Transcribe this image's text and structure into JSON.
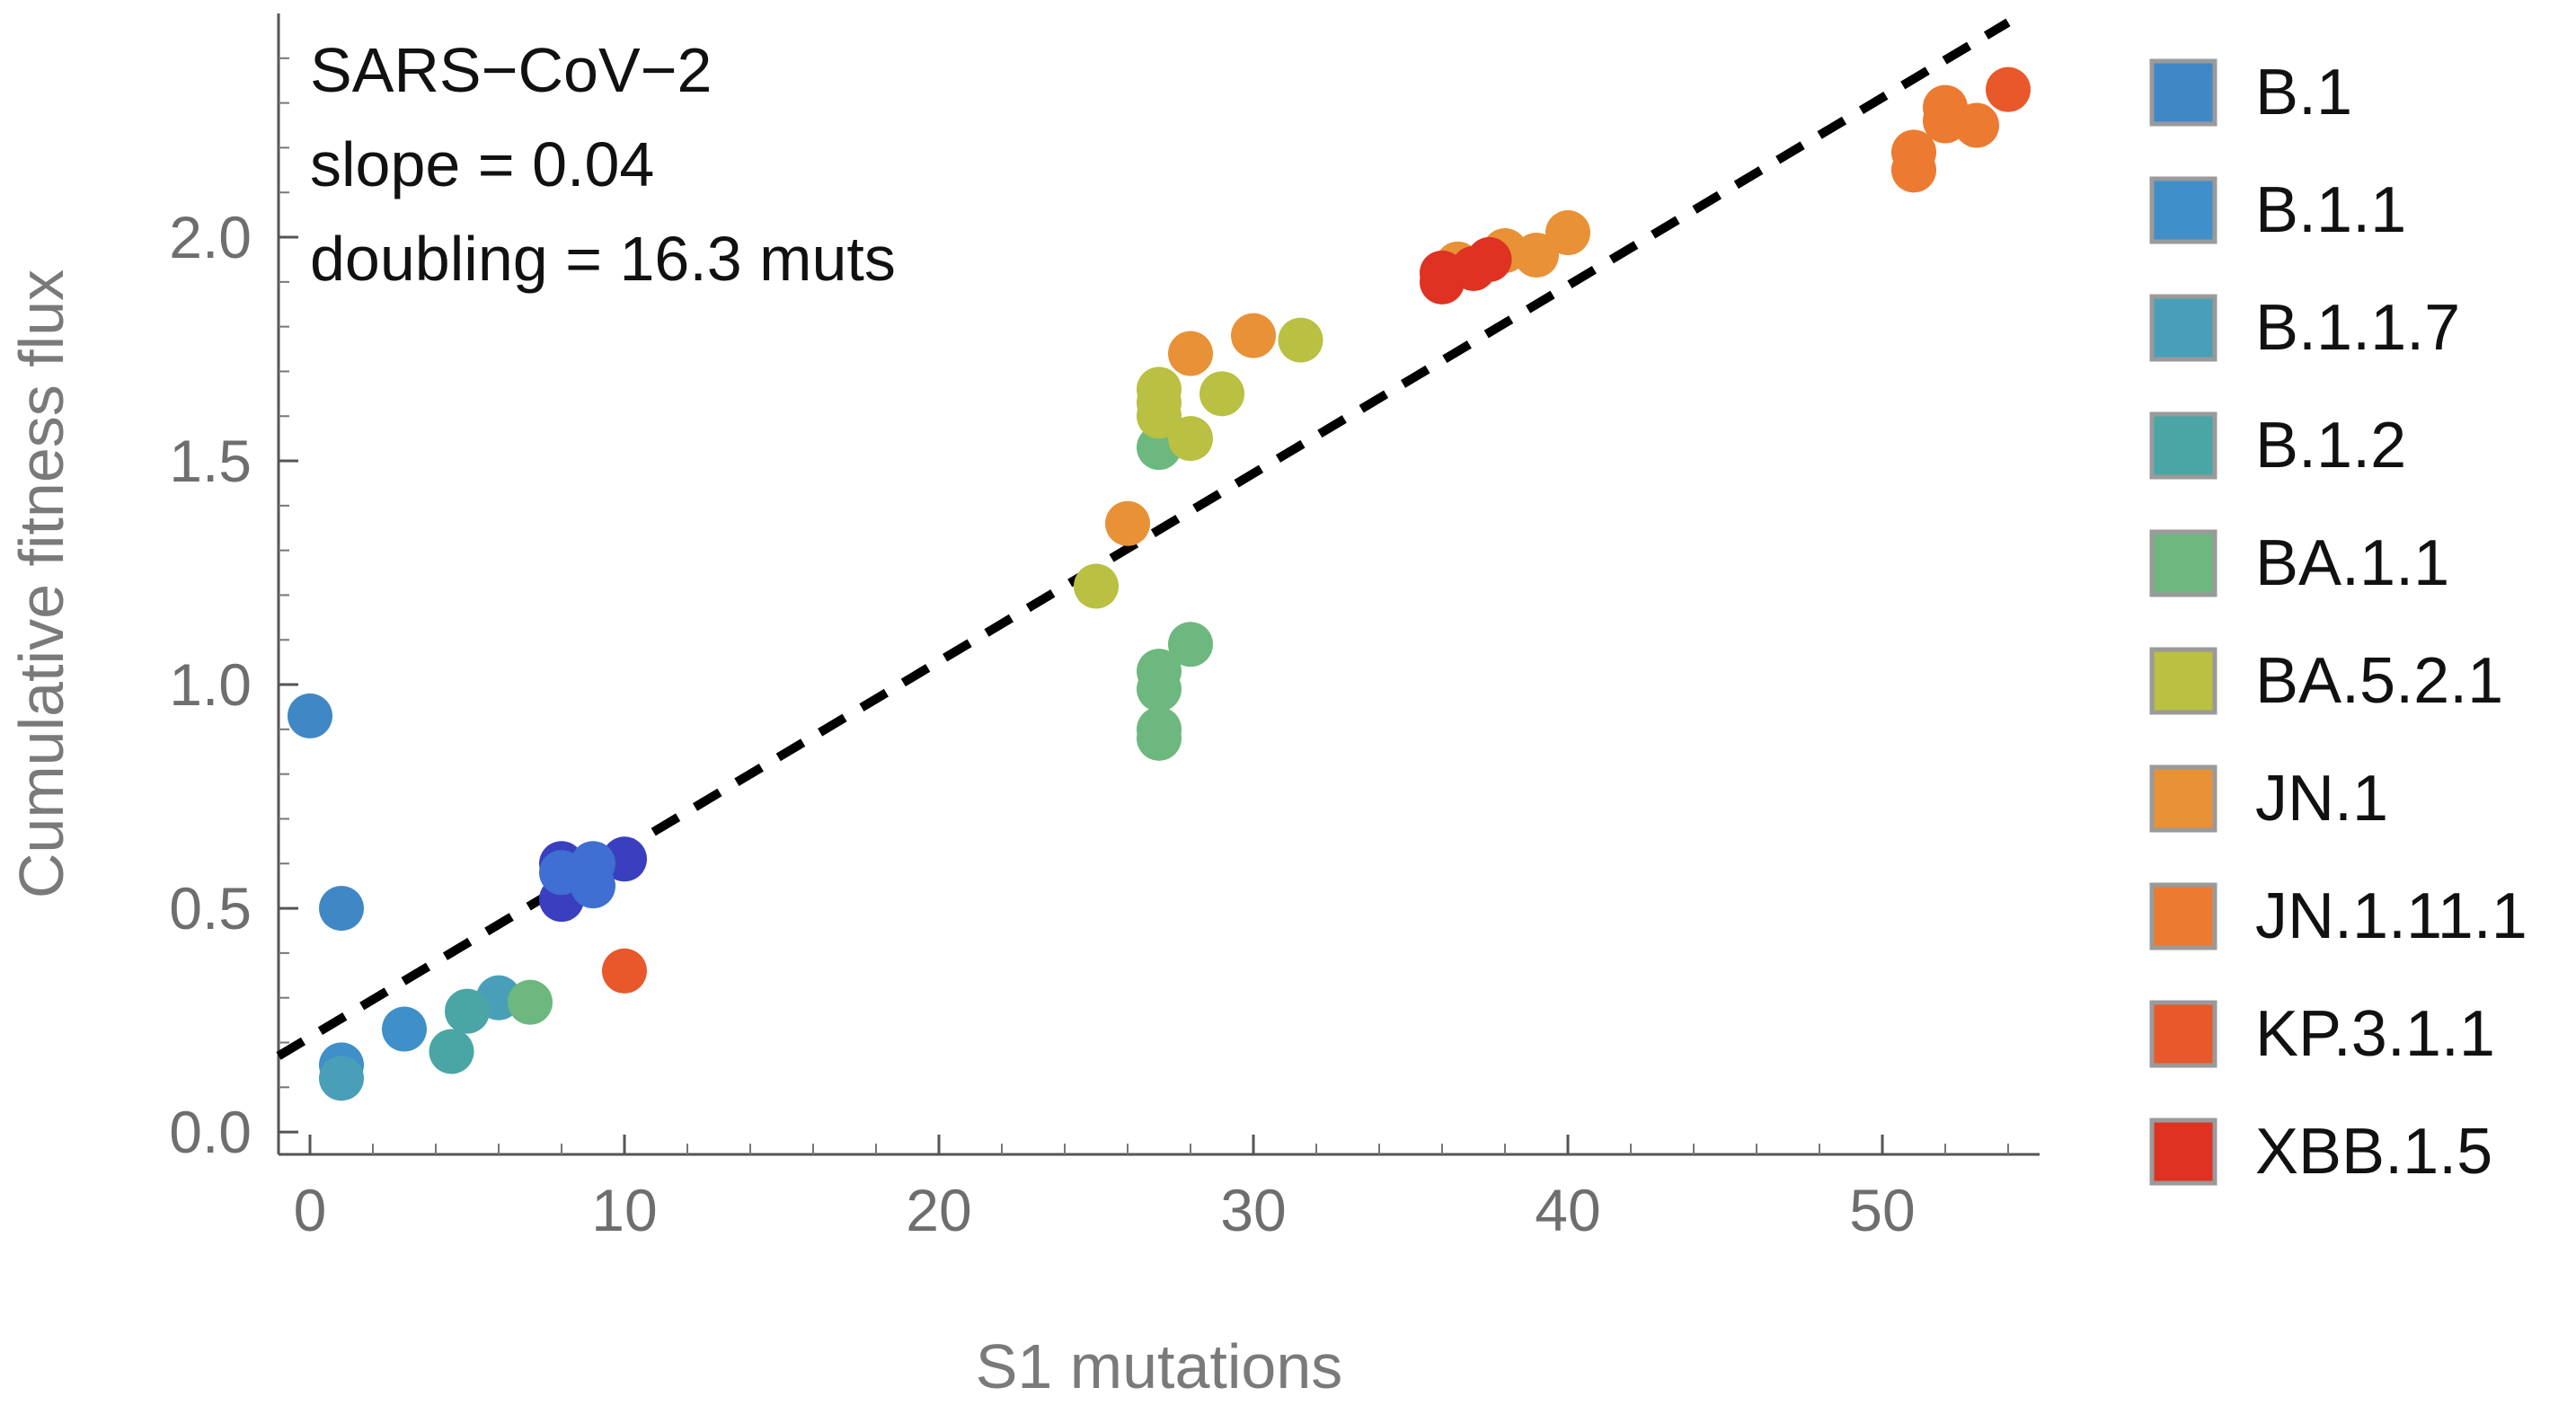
{
  "chart_data": {
    "type": "scatter",
    "title": "",
    "xlabel": "S1 mutations",
    "ylabel": "Cumulative fitness flux",
    "xlim": [
      -1,
      55
    ],
    "ylim": [
      -0.05,
      2.5
    ],
    "x_ticks": [
      "0",
      "10",
      "20",
      "30",
      "40",
      "50"
    ],
    "y_ticks": [
      "0.0",
      "0.5",
      "1.0",
      "1.5",
      "2.0"
    ],
    "grid": false,
    "legend_placement": "right",
    "annotations": [
      "SARS−CoV−2",
      "slope = 0.04",
      "doubling = 16.3 muts"
    ],
    "fit_line": {
      "style": "dashed",
      "color": "#000000",
      "x": [
        -1,
        54
      ],
      "y": [
        0.17,
        2.48
      ]
    },
    "series": [
      {
        "name": "B.1",
        "color": "#3f88c5",
        "points": [
          [
            0,
            0.93
          ],
          [
            1,
            0.5
          ]
        ]
      },
      {
        "name": "B.1.1",
        "color": "#3f8fc8",
        "points": [
          [
            1,
            0.15
          ],
          [
            3,
            0.23
          ]
        ]
      },
      {
        "name": "B.1.1.7",
        "color": "#4a9fb8",
        "points": [
          [
            1,
            0.12
          ],
          [
            6,
            0.3
          ]
        ]
      },
      {
        "name": "B.1.2",
        "color": "#4aa5a5",
        "points": [
          [
            4.5,
            0.18
          ],
          [
            5,
            0.27
          ]
        ]
      },
      {
        "name": "BA.1.1",
        "color": "#6cb87e",
        "points": [
          [
            7,
            0.29
          ],
          [
            9,
            0.58
          ],
          [
            27,
            0.9
          ],
          [
            27,
            0.88
          ],
          [
            27,
            0.99
          ],
          [
            27,
            1.03
          ],
          [
            28,
            1.09
          ],
          [
            27,
            1.53
          ]
        ]
      },
      {
        "name": "BA.5.2.1",
        "color": "#b9c042",
        "points": [
          [
            25,
            1.22
          ],
          [
            27,
            1.6
          ],
          [
            27,
            1.63
          ],
          [
            27,
            1.66
          ],
          [
            28,
            1.55
          ],
          [
            29,
            1.65
          ],
          [
            31.5,
            1.77
          ]
        ]
      },
      {
        "name": "JN.1",
        "color": "#e89136",
        "points": [
          [
            26,
            1.36
          ],
          [
            28,
            1.74
          ],
          [
            30,
            1.78
          ],
          [
            36.5,
            1.94
          ],
          [
            38,
            1.97
          ],
          [
            39,
            1.96
          ],
          [
            40,
            2.01
          ]
        ]
      },
      {
        "name": "JN.1.11.1",
        "color": "#ec7a30",
        "points": [
          [
            51,
            2.15
          ],
          [
            51,
            2.19
          ],
          [
            52,
            2.26
          ],
          [
            52,
            2.29
          ],
          [
            53,
            2.25
          ]
        ]
      },
      {
        "name": "KP.3.1.1",
        "color": "#e8582a",
        "points": [
          [
            10,
            0.36
          ],
          [
            54,
            2.33
          ]
        ]
      },
      {
        "name": "XBB.1.5",
        "color": "#df3222",
        "points": [
          [
            36,
            1.9
          ],
          [
            36,
            1.92
          ],
          [
            37,
            1.93
          ],
          [
            37.5,
            1.95
          ]
        ]
      },
      {
        "name": "",
        "color": "#3a3fc0",
        "points": [
          [
            8,
            0.52
          ],
          [
            8,
            0.6
          ],
          [
            10,
            0.61
          ]
        ]
      },
      {
        "name": "",
        "color": "#3f6fd0",
        "points": [
          [
            8,
            0.58
          ],
          [
            9,
            0.55
          ],
          [
            9,
            0.6
          ]
        ]
      }
    ],
    "legend": [
      {
        "label": "B.1",
        "color": "#3f88c5"
      },
      {
        "label": "B.1.1",
        "color": "#3f8fc8"
      },
      {
        "label": "B.1.1.7",
        "color": "#4a9fb8"
      },
      {
        "label": "B.1.2",
        "color": "#4aa5a5"
      },
      {
        "label": "BA.1.1",
        "color": "#6cb87e"
      },
      {
        "label": "BA.5.2.1",
        "color": "#b9c042"
      },
      {
        "label": "JN.1",
        "color": "#e89136"
      },
      {
        "label": "JN.1.11.1",
        "color": "#ec7a30"
      },
      {
        "label": "KP.3.1.1",
        "color": "#e8582a"
      },
      {
        "label": "XBB.1.5",
        "color": "#df3222"
      }
    ]
  }
}
